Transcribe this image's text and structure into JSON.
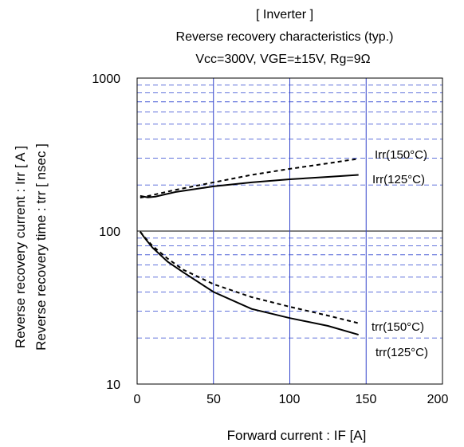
{
  "chart_data": {
    "type": "line",
    "title": "[ Inverter ]",
    "subtitle": "Reverse recovery characteristics  (typ.)",
    "conditions": "Vcc=300V,   VGE=±15V,   Rg=9Ω",
    "xlabel": "Forward current : IF [A]",
    "ylabel": [
      "Reverse recovery current  :  Irr  [ A ]",
      "Reverse recovery time  :  trr  [ nsec ]"
    ],
    "x_ticks": [
      "0",
      "50",
      "100",
      "150",
      "200"
    ],
    "y_ticks": [
      "10",
      "100",
      "1000"
    ],
    "xlim": [
      0,
      200
    ],
    "ylim": [
      10,
      1000
    ],
    "y_scale": "log",
    "grid": true,
    "series": [
      {
        "name": "Irr(125°C)",
        "style": "solid",
        "x": [
          2,
          7,
          12,
          25,
          50,
          75,
          100,
          125,
          145
        ],
        "y": [
          170,
          166,
          168,
          180,
          196,
          208,
          218,
          226,
          233
        ]
      },
      {
        "name": "Irr(150°C)",
        "style": "dashed",
        "x": [
          2,
          10,
          25,
          50,
          75,
          100,
          125,
          145
        ],
        "y": [
          165,
          172,
          186,
          208,
          233,
          255,
          277,
          297
        ]
      },
      {
        "name": "trr(150°C)",
        "style": "dashed",
        "x": [
          2,
          5,
          10,
          20,
          30,
          50,
          75,
          100,
          125,
          145
        ],
        "y": [
          99,
          91,
          80,
          66,
          56,
          45,
          37,
          32,
          28,
          25
        ]
      },
      {
        "name": "trr(125°C)",
        "style": "solid",
        "x": [
          2,
          5,
          10,
          20,
          30,
          50,
          75,
          100,
          125,
          145
        ],
        "y": [
          99,
          90,
          78,
          63,
          54,
          40,
          31,
          27,
          24,
          21
        ]
      }
    ],
    "annotations": [
      "Irr(150°C)",
      "Irr(125°C)",
      "trr(150°C)",
      "trr(125°C)"
    ]
  }
}
